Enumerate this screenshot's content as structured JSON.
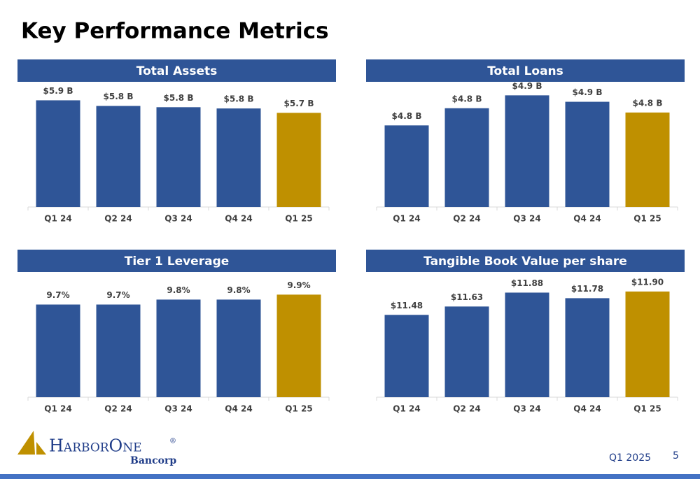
{
  "title": "Key Performance Metrics",
  "chart_data": [
    {
      "type": "bar",
      "title": "Total Assets",
      "categories": [
        "Q1 24",
        "Q2 24",
        "Q3 24",
        "Q4 24",
        "Q1 25"
      ],
      "values": [
        5.88,
        5.79,
        5.77,
        5.75,
        5.68
      ],
      "value_labels": [
        "$5.9 B",
        "$5.8 B",
        "$5.8 B",
        "$5.8 B",
        "$5.7 B"
      ],
      "colors": [
        "#2f5597",
        "#2f5597",
        "#2f5597",
        "#2f5597",
        "#bf9000"
      ],
      "ylim": [
        4.18,
        6.13
      ]
    },
    {
      "type": "bar",
      "title": "Total Loans",
      "categories": [
        "Q1 24",
        "Q2 24",
        "Q3 24",
        "Q4 24",
        "Q1 25"
      ],
      "values": [
        4.76,
        4.84,
        4.9,
        4.87,
        4.82
      ],
      "value_labels": [
        "$4.8 B",
        "$4.8 B",
        "$4.9 B",
        "$4.9 B",
        "$4.8 B"
      ],
      "colors": [
        "#2f5597",
        "#2f5597",
        "#2f5597",
        "#2f5597",
        "#bf9000"
      ],
      "ylim": [
        4.38,
        4.95
      ]
    },
    {
      "type": "bar",
      "title": "Tier 1 Leverage",
      "categories": [
        "Q1 24",
        "Q2 24",
        "Q3 24",
        "Q4 24",
        "Q1 25"
      ],
      "values": [
        9.7,
        9.7,
        9.8,
        9.8,
        9.9
      ],
      "value_labels": [
        "9.7%",
        "9.7%",
        "9.8%",
        "9.8%",
        "9.9%"
      ],
      "colors": [
        "#2f5597",
        "#2f5597",
        "#2f5597",
        "#2f5597",
        "#bf9000"
      ],
      "ylim": [
        7.83,
        10.3
      ]
    },
    {
      "type": "bar",
      "title": "Tangible Book Value per share",
      "categories": [
        "Q1 24",
        "Q2 24",
        "Q3 24",
        "Q4 24",
        "Q1 25"
      ],
      "values": [
        11.48,
        11.63,
        11.88,
        11.78,
        11.9
      ],
      "value_labels": [
        "$11.48",
        "$11.63",
        "$11.88",
        "$11.78",
        "$11.90"
      ],
      "colors": [
        "#2f5597",
        "#2f5597",
        "#2f5597",
        "#2f5597",
        "#bf9000"
      ],
      "ylim": [
        10.0,
        12.2
      ]
    }
  ],
  "logo": {
    "name": "HarborOne",
    "mark": "®",
    "sub": "Bancorp"
  },
  "footer": {
    "period": "Q1 2025",
    "page": "5"
  }
}
